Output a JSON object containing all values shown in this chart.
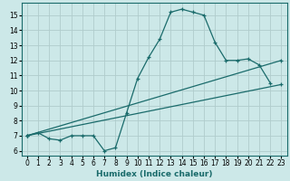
{
  "xlabel": "Humidex (Indice chaleur)",
  "bg_color": "#cce8e8",
  "line_color": "#1a6b6b",
  "grid_color": "#b0cccc",
  "xlim": [
    -0.5,
    23.5
  ],
  "ylim": [
    5.7,
    15.8
  ],
  "yticks": [
    6,
    7,
    8,
    9,
    10,
    11,
    12,
    13,
    14,
    15
  ],
  "xticks": [
    0,
    1,
    2,
    3,
    4,
    5,
    6,
    7,
    8,
    9,
    10,
    11,
    12,
    13,
    14,
    15,
    16,
    17,
    18,
    19,
    20,
    21,
    22,
    23
  ],
  "line1_x": [
    0,
    1,
    2,
    3,
    4,
    5,
    6,
    7,
    8,
    9,
    10,
    11,
    12,
    13,
    14,
    15,
    16,
    17,
    18,
    19,
    20,
    21,
    22
  ],
  "line1_y": [
    7.0,
    7.2,
    6.8,
    6.7,
    7.0,
    7.0,
    7.0,
    6.0,
    6.2,
    8.5,
    10.8,
    12.2,
    13.4,
    15.2,
    15.4,
    15.2,
    15.0,
    13.2,
    12.0,
    12.0,
    12.1,
    11.7,
    10.5
  ],
  "line2_x": [
    0,
    23
  ],
  "line2_y": [
    7.0,
    10.4
  ],
  "line3_x": [
    0,
    23
  ],
  "line3_y": [
    7.0,
    12.0
  ]
}
